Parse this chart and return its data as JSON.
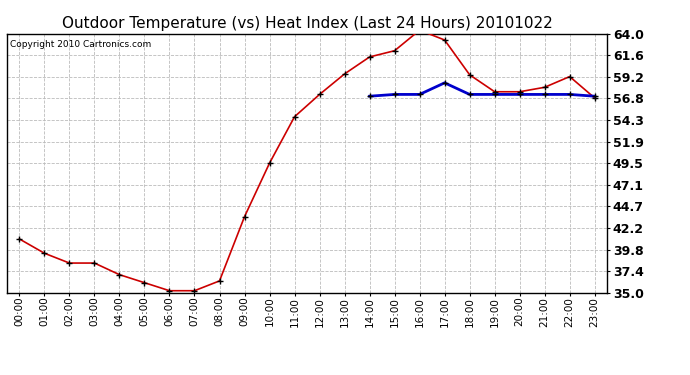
{
  "title": "Outdoor Temperature (vs) Heat Index (Last 24 Hours) 20101022",
  "copyright": "Copyright 2010 Cartronics.com",
  "x_labels": [
    "00:00",
    "01:00",
    "02:00",
    "03:00",
    "04:00",
    "05:00",
    "06:00",
    "07:00",
    "08:00",
    "09:00",
    "10:00",
    "11:00",
    "12:00",
    "13:00",
    "14:00",
    "15:00",
    "16:00",
    "17:00",
    "18:00",
    "19:00",
    "20:00",
    "21:00",
    "22:00",
    "23:00"
  ],
  "temp_data": [
    41.0,
    39.4,
    38.3,
    38.3,
    37.0,
    36.1,
    35.2,
    35.2,
    36.3,
    43.5,
    49.5,
    54.7,
    57.2,
    59.5,
    61.4,
    62.1,
    64.4,
    63.3,
    59.4,
    57.5,
    57.5,
    58.0,
    59.2,
    56.8
  ],
  "heat_data": [
    null,
    null,
    null,
    null,
    null,
    null,
    null,
    null,
    null,
    null,
    null,
    null,
    null,
    null,
    57.0,
    57.2,
    57.2,
    58.5,
    57.2,
    57.2,
    57.2,
    57.2,
    57.2,
    57.0
  ],
  "temp_color": "#cc0000",
  "heat_color": "#0000cc",
  "bg_color": "#ffffff",
  "plot_bg_color": "#ffffff",
  "grid_color": "#bbbbbb",
  "ylim_min": 35.0,
  "ylim_max": 64.0,
  "yticks": [
    35.0,
    37.4,
    39.8,
    42.2,
    44.7,
    47.1,
    49.5,
    51.9,
    54.3,
    56.8,
    59.2,
    61.6,
    64.0
  ],
  "title_fontsize": 11,
  "copyright_fontsize": 6.5,
  "tick_fontsize": 7.5,
  "ytick_fontsize": 9
}
